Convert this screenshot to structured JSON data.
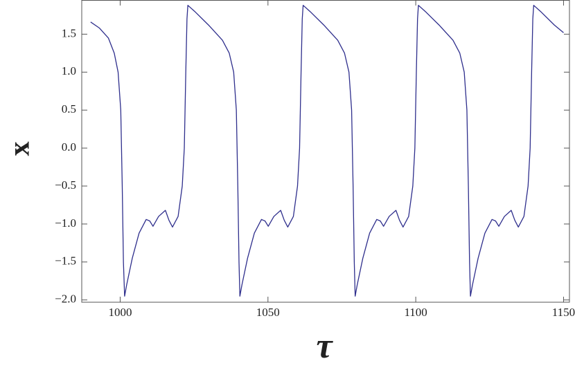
{
  "chart_data": {
    "type": "line",
    "x_label": "τ",
    "y_label": "x",
    "x": [
      990,
      993,
      996,
      998,
      999.3,
      1000.2,
      1000.7,
      1001.1,
      1001.5,
      1002.2,
      1004.1,
      1006.4,
      1008.8,
      1010.0,
      1011.1,
      1013.0,
      1015.3,
      1016.5,
      1017.7,
      1019.6,
      1021.0,
      1021.7,
      1022.2,
      1022.6,
      1022.9,
      1025.2,
      1029.9,
      1034.6,
      1036.9,
      1038.4,
      1039.3,
      1039.8,
      1040.2,
      1040.5,
      1041.2,
      1043.1,
      1045.4,
      1047.8,
      1049.0,
      1050.1,
      1052.0,
      1054.3,
      1055.5,
      1056.7,
      1058.6,
      1060.0,
      1060.7,
      1061.2,
      1061.6,
      1061.9,
      1064.2,
      1068.9,
      1073.6,
      1075.9,
      1077.4,
      1078.3,
      1078.8,
      1079.2,
      1079.5,
      1080.2,
      1082.1,
      1084.4,
      1086.8,
      1088.0,
      1089.1,
      1091.0,
      1093.3,
      1094.5,
      1095.7,
      1097.6,
      1099.0,
      1099.7,
      1100.2,
      1100.6,
      1100.9,
      1103.2,
      1107.9,
      1112.6,
      1114.9,
      1116.4,
      1117.3,
      1117.8,
      1118.2,
      1118.5,
      1119.2,
      1121.1,
      1123.4,
      1125.8,
      1127.0,
      1128.1,
      1130.0,
      1132.3,
      1133.5,
      1134.7,
      1136.6,
      1138.0,
      1138.7,
      1139.2,
      1139.6,
      1139.9,
      1142.2,
      1146.9,
      1150
    ],
    "series": [
      {
        "color": "#2e2e8c",
        "values": [
          1.66,
          1.58,
          1.45,
          1.25,
          1.0,
          0.5,
          -0.5,
          -1.5,
          -1.95,
          -1.8,
          -1.45,
          -1.12,
          -0.94,
          -0.96,
          -1.03,
          -0.9,
          -0.82,
          -0.95,
          -1.04,
          -0.9,
          -0.5,
          0.0,
          1.0,
          1.7,
          1.88,
          1.8,
          1.62,
          1.42,
          1.25,
          1.0,
          0.5,
          -0.5,
          -1.5,
          -1.95,
          -1.8,
          -1.45,
          -1.12,
          -0.94,
          -0.96,
          -1.03,
          -0.9,
          -0.82,
          -0.95,
          -1.04,
          -0.9,
          -0.5,
          0.0,
          1.0,
          1.7,
          1.88,
          1.8,
          1.62,
          1.42,
          1.25,
          1.0,
          0.5,
          -0.5,
          -1.5,
          -1.95,
          -1.8,
          -1.45,
          -1.12,
          -0.94,
          -0.96,
          -1.03,
          -0.9,
          -0.82,
          -0.95,
          -1.04,
          -0.9,
          -0.5,
          0.0,
          1.0,
          1.7,
          1.88,
          1.8,
          1.62,
          1.42,
          1.25,
          1.0,
          0.5,
          -0.5,
          -1.5,
          -1.95,
          -1.8,
          -1.45,
          -1.12,
          -0.94,
          -0.96,
          -1.03,
          -0.9,
          -0.82,
          -0.95,
          -1.04,
          -0.9,
          -0.5,
          0.0,
          1.0,
          1.7,
          1.88,
          1.8,
          1.62,
          1.52
        ]
      }
    ],
    "xlim": [
      987,
      1152
    ],
    "xticks": [
      1000,
      1050,
      1100,
      1150
    ],
    "ylim": [
      -2.03,
      1.95
    ],
    "yticks": [
      {
        "value": -2,
        "label": "−2.0"
      },
      {
        "value": -1.5,
        "label": "−1.5"
      },
      {
        "value": -1,
        "label": "−1.0"
      },
      {
        "value": -0.5,
        "label": "−0.5"
      },
      {
        "value": 0,
        "label": "0.0"
      },
      0.5,
      {
        "value": 1,
        "label": "1.0"
      },
      1.5
    ]
  }
}
